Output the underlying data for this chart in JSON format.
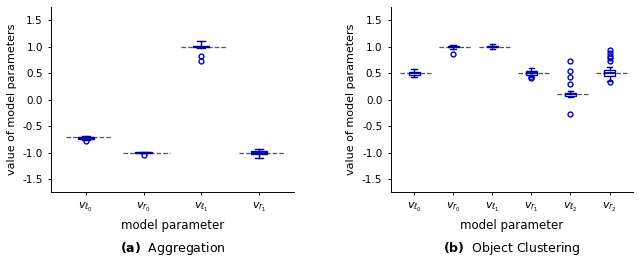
{
  "fig_width": 6.4,
  "fig_height": 2.67,
  "dpi": 100,
  "blue_dark": "#00008B",
  "blue_mid": "#0000CD",
  "dashed_color": "#555555",
  "panel_a": {
    "title": "Aggregation",
    "xlabel": "model parameter",
    "ylabel": "value of model parameters",
    "xlabels": [
      "$v_{\\ell_0}$",
      "$v_{r_0}$",
      "$v_{\\ell_1}$",
      "$v_{r_1}$"
    ],
    "ylim": [
      -1.75,
      1.75
    ],
    "yticks": [
      -1.5,
      -1.0,
      -0.5,
      0.0,
      0.5,
      1.0,
      1.5
    ],
    "dashed_values": [
      -0.7,
      -1.0,
      1.0,
      -1.0
    ],
    "dashed_xranges": [
      [
        0.65,
        1.45
      ],
      [
        1.65,
        2.45
      ],
      [
        2.65,
        3.45
      ],
      [
        3.65,
        4.45
      ]
    ],
    "boxes": [
      {
        "med": -0.72,
        "q1": -0.735,
        "q3": -0.705,
        "whislo": -0.755,
        "whishi": -0.685,
        "fliers": [
          -0.775
        ]
      },
      {
        "med": -1.0,
        "q1": -1.008,
        "q3": -0.992,
        "whislo": -1.015,
        "whishi": -0.985,
        "fliers": [
          -1.038
        ]
      },
      {
        "med": 1.0,
        "q1": 0.99,
        "q3": 1.008,
        "whislo": 0.975,
        "whishi": 1.115,
        "fliers": [
          0.83,
          0.72
        ]
      },
      {
        "med": -1.0,
        "q1": -1.03,
        "q3": -0.97,
        "whislo": -1.11,
        "whishi": -0.93,
        "fliers": []
      }
    ]
  },
  "panel_b": {
    "title": "Object Clustering",
    "xlabel": "model parameter",
    "ylabel": "value of model parameters",
    "xlabels": [
      "$v_{\\ell_0}$",
      "$v_{r_0}$",
      "$v_{\\ell_1}$",
      "$v_{r_1}$",
      "$v_{\\ell_2}$",
      "$v_{r_2}$"
    ],
    "ylim": [
      -1.75,
      1.75
    ],
    "yticks": [
      -1.5,
      -1.0,
      -0.5,
      0.0,
      0.5,
      1.0,
      1.5
    ],
    "dashed_values": [
      0.5,
      1.0,
      1.0,
      0.5,
      0.1,
      0.5
    ],
    "dashed_xranges": [
      [
        0.65,
        1.45
      ],
      [
        1.65,
        2.45
      ],
      [
        2.65,
        3.45
      ],
      [
        3.65,
        4.45
      ],
      [
        4.65,
        5.45
      ],
      [
        5.65,
        6.45
      ]
    ],
    "boxes": [
      {
        "med": 0.5,
        "q1": 0.47,
        "q3": 0.53,
        "whislo": 0.43,
        "whishi": 0.57,
        "fliers": []
      },
      {
        "med": 1.0,
        "q1": 0.985,
        "q3": 1.015,
        "whislo": 0.965,
        "whishi": 1.04,
        "fliers": [
          0.86
        ]
      },
      {
        "med": 1.0,
        "q1": 0.985,
        "q3": 1.015,
        "whislo": 0.962,
        "whishi": 1.048,
        "fliers": []
      },
      {
        "med": 0.5,
        "q1": 0.47,
        "q3": 0.535,
        "whislo": 0.435,
        "whishi": 0.595,
        "fliers": [
          0.4,
          0.43
        ]
      },
      {
        "med": 0.1,
        "q1": 0.075,
        "q3": 0.13,
        "whislo": 0.05,
        "whishi": 0.16,
        "fliers": [
          0.72,
          0.54,
          0.42,
          0.3,
          -0.28
        ]
      },
      {
        "med": 0.5,
        "q1": 0.44,
        "q3": 0.565,
        "whislo": 0.36,
        "whishi": 0.625,
        "fliers": [
          0.34,
          0.72,
          0.78,
          0.83,
          0.88,
          0.93
        ]
      }
    ]
  }
}
